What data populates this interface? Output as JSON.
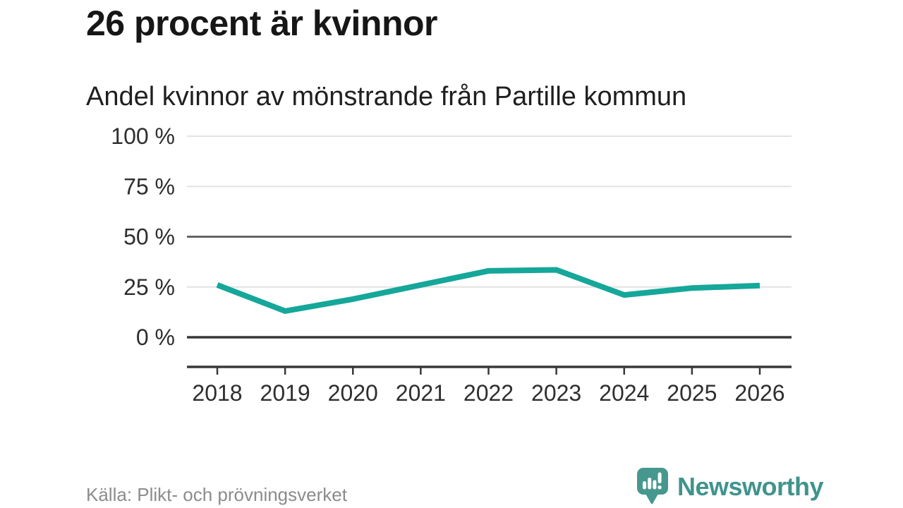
{
  "header": {
    "title": "26 procent är kvinnor",
    "subtitle": "Andel kvinnor av mönstrande från Partille kommun"
  },
  "chart_data": {
    "type": "line",
    "title": "Andel kvinnor av mönstrande från Partille kommun",
    "x": [
      2018,
      2019,
      2020,
      2021,
      2022,
      2023,
      2024,
      2025,
      2026
    ],
    "series": [
      {
        "name": "Andel kvinnor av mönstrande",
        "values": [
          26,
          13,
          19,
          26,
          33,
          33.5,
          21,
          24.5,
          25.7
        ]
      }
    ],
    "unit": "%",
    "ylim": [
      0,
      100
    ],
    "yticks": [
      0,
      25,
      50,
      75,
      100
    ],
    "ytick_suffix": " %",
    "emphasized_yticks": [
      50
    ],
    "baseline_ytick": 0,
    "grid": "horizontal",
    "legend": "none",
    "xlabel": "",
    "ylabel": "",
    "colors": {
      "line": "#15a79a",
      "grid_light": "#e2e2e2",
      "grid_emphasis": "#595959",
      "axis": "#383838",
      "tick_label": "#2e2e2e"
    }
  },
  "footer": {
    "source": "Källa: Plikt- och prövningsverket",
    "brand": "Newsworthy"
  },
  "logo": {
    "bubble_color": "#46988f",
    "glyph_color": "#ffffff",
    "wordmark_color": "#3f948d"
  }
}
